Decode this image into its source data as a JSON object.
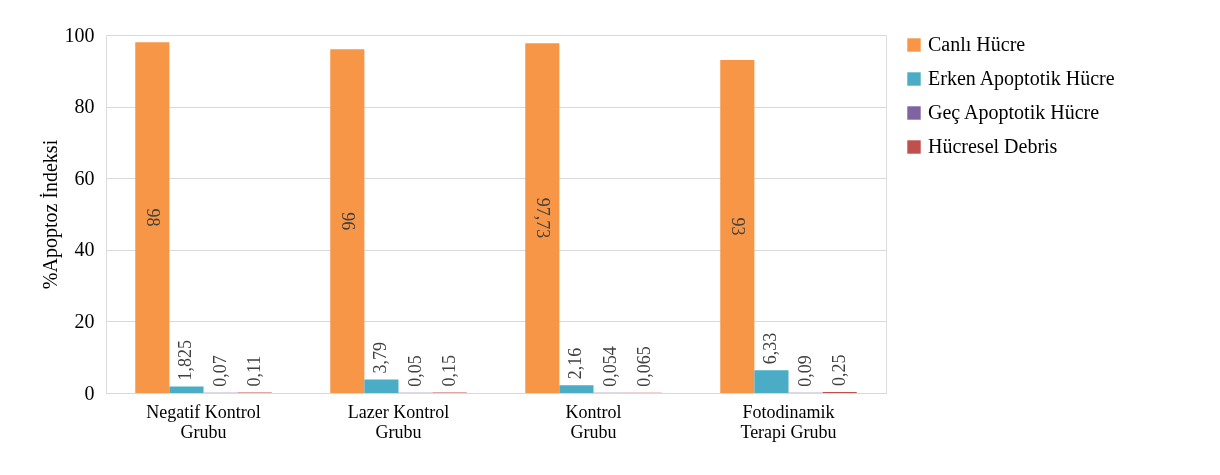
{
  "chart_data": {
    "type": "bar",
    "ylabel": "%Apoptoz İndeksi",
    "categories": [
      "Negatif Kontrol\nGrubu",
      "Lazer Kontrol\nGrubu",
      "Kontrol\nGrubu",
      "Fotodinamik\nTerapi Grubu"
    ],
    "series": [
      {
        "name": "Canlı Hücre",
        "color": "#f79646",
        "values": [
          98,
          96,
          97.73,
          93
        ],
        "value_labels": [
          "98",
          "96",
          "97,73",
          "93"
        ]
      },
      {
        "name": "Erken Apoptotik Hücre",
        "color": "#4bacc6",
        "values": [
          1.825,
          3.79,
          2.16,
          6.33
        ],
        "value_labels": [
          "1,825",
          "3,79",
          "2,16",
          "6,33"
        ]
      },
      {
        "name": "Geç Apoptotik Hücre",
        "color": "#8064a2",
        "values": [
          0.07,
          0.05,
          0.054,
          0.09
        ],
        "value_labels": [
          "0,07",
          "0,05",
          "0,054",
          "0,09"
        ]
      },
      {
        "name": "Hücresel Debris",
        "color": "#c0504d",
        "values": [
          0.11,
          0.15,
          0.065,
          0.25
        ],
        "value_labels": [
          "0,11",
          "0,15",
          "0,065",
          "0,25"
        ]
      }
    ],
    "ylim": [
      0,
      100
    ],
    "yticks": [
      0,
      20,
      40,
      60,
      80,
      100
    ],
    "grid": "y",
    "legend": "right"
  }
}
